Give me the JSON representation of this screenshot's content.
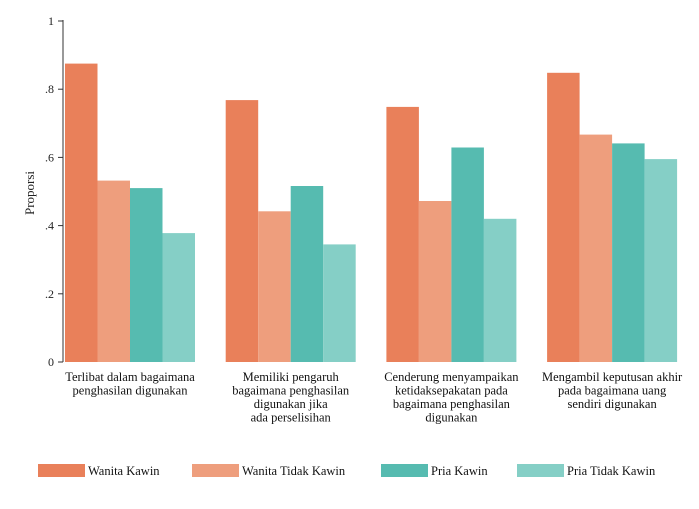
{
  "chart_data": {
    "type": "bar",
    "ylabel": "Proporsi",
    "ylim": [
      0,
      1
    ],
    "yticks": [
      {
        "value": 0,
        "label": "0"
      },
      {
        "value": 0.2,
        "label": ".2"
      },
      {
        "value": 0.4,
        "label": ".4"
      },
      {
        "value": 0.6,
        "label": ".6"
      },
      {
        "value": 0.8,
        "label": ".8"
      },
      {
        "value": 1,
        "label": "1"
      }
    ],
    "categories": [
      [
        "Terlibat dalam bagaimana",
        "penghasilan digunakan"
      ],
      [
        "Memiliki pengaruh",
        "bagaimana penghasilan",
        "digunakan jika",
        "ada perselisihan"
      ],
      [
        "Cenderung menyampaikan",
        "ketidaksepakatan pada",
        "bagaimana penghasilan",
        "digunakan"
      ],
      [
        "Mengambil keputusan akhir",
        "pada bagaimana uang",
        "sendiri digunakan"
      ]
    ],
    "series": [
      {
        "name": "Wanita Kawin",
        "color": "#E9805A",
        "values": [
          0.875,
          0.768,
          0.748,
          0.848
        ]
      },
      {
        "name": "Wanita Tidak Kawin",
        "color": "#EE9E7D",
        "values": [
          0.532,
          0.442,
          0.472,
          0.667
        ]
      },
      {
        "name": "Pria Kawin",
        "color": "#56BBB0",
        "values": [
          0.51,
          0.516,
          0.629,
          0.641
        ]
      },
      {
        "name": "Pria Tidak Kawin",
        "color": "#85CFC6",
        "values": [
          0.378,
          0.345,
          0.42,
          0.595
        ]
      }
    ],
    "grid": false,
    "legend": "bottom"
  }
}
